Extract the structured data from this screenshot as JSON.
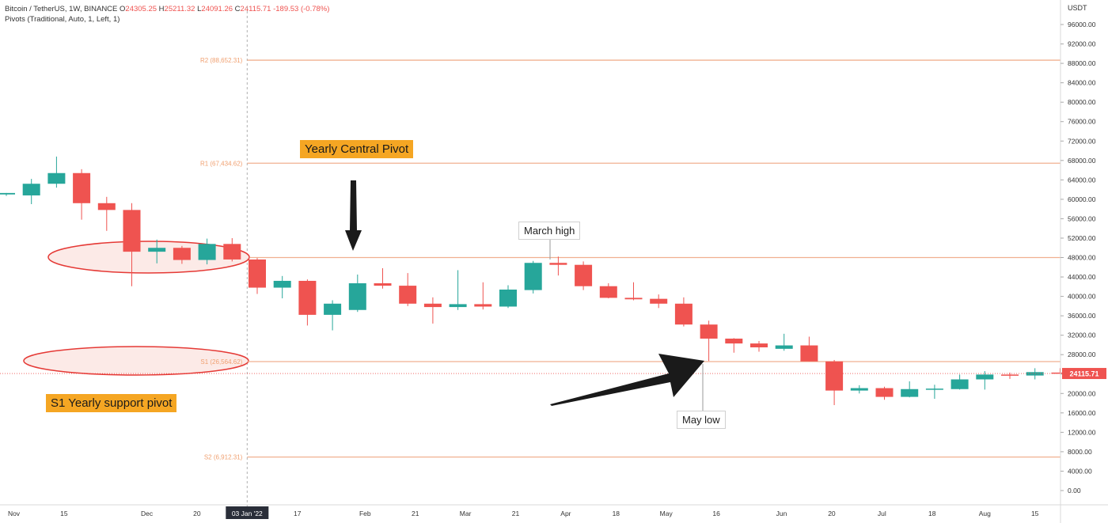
{
  "header": {
    "symbol_line": "Bitcoin / TetherUS, 1W, BINANCE",
    "open_label": "O",
    "open": "24305.25",
    "high_label": "H",
    "high": "25211.32",
    "low_label": "L",
    "low": "24091.26",
    "close_label": "C",
    "close": "24115.71",
    "change": "-189.53 (-0.78%)",
    "indicator_line": "Pivots (Traditional, Auto, 1, Left, 1)"
  },
  "annotations": {
    "central_pivot": "Yearly Central Pivot",
    "s1_support": "S1 Yearly support pivot",
    "march_high": "March high",
    "may_low": "May low"
  },
  "colors": {
    "up": "#26a69a",
    "down": "#ef5350",
    "pivot_line": "#f0b090",
    "pivot_label": "#f0a070",
    "callout": "#f5a623",
    "ellipse_fill": "#fbe3df",
    "ellipse_stroke": "#e53935"
  },
  "chart_data": {
    "type": "candlestick",
    "y_axis_unit": "USDT",
    "ylim": [
      -2000,
      99000
    ],
    "y_ticks": [
      "96000.00",
      "92000.00",
      "88000.00",
      "84000.00",
      "80000.00",
      "76000.00",
      "72000.00",
      "68000.00",
      "64000.00",
      "60000.00",
      "56000.00",
      "52000.00",
      "48000.00",
      "44000.00",
      "40000.00",
      "36000.00",
      "32000.00",
      "28000.00",
      "24000.00",
      "20000.00",
      "16000.00",
      "12000.00",
      "8000.00",
      "4000.00",
      "0.00"
    ],
    "x_ticks": [
      {
        "label": "Nov",
        "index": -0.7
      },
      {
        "label": "15",
        "index": 1.3
      },
      {
        "label": "Dec",
        "index": 4.6
      },
      {
        "label": "20",
        "index": 6.6
      },
      {
        "label": "03 Jan '22",
        "index": 8.6,
        "highlight": true
      },
      {
        "label": "17",
        "index": 10.6
      },
      {
        "label": "Feb",
        "index": 13.3
      },
      {
        "label": "21",
        "index": 15.3
      },
      {
        "label": "Mar",
        "index": 17.3
      },
      {
        "label": "21",
        "index": 19.3
      },
      {
        "label": "Apr",
        "index": 21.3
      },
      {
        "label": "18",
        "index": 23.3
      },
      {
        "label": "May",
        "index": 25.3
      },
      {
        "label": "16",
        "index": 27.3
      },
      {
        "label": "Jun",
        "index": 29.9
      },
      {
        "label": "20",
        "index": 31.9
      },
      {
        "label": "Jul",
        "index": 33.9
      },
      {
        "label": "18",
        "index": 35.9
      },
      {
        "label": "Aug",
        "index": 38.0
      },
      {
        "label": "15",
        "index": 40.0
      }
    ],
    "first_candle_index": -1,
    "current_price": "24115.71",
    "current_price_value": 24115.71,
    "candles": [
      {
        "o": 61000,
        "h": 61300,
        "l": 60700,
        "c": 61300
      },
      {
        "o": 60800,
        "h": 64200,
        "l": 59000,
        "c": 63200
      },
      {
        "o": 63200,
        "h": 68800,
        "l": 62400,
        "c": 65400
      },
      {
        "o": 65400,
        "h": 66200,
        "l": 55800,
        "c": 59200
      },
      {
        "o": 59200,
        "h": 60500,
        "l": 53500,
        "c": 57800
      },
      {
        "o": 57800,
        "h": 59200,
        "l": 42100,
        "c": 49200
      },
      {
        "o": 49200,
        "h": 51700,
        "l": 46800,
        "c": 50000
      },
      {
        "o": 50000,
        "h": 50400,
        "l": 46700,
        "c": 47500
      },
      {
        "o": 47500,
        "h": 51900,
        "l": 46600,
        "c": 50800
      },
      {
        "o": 50800,
        "h": 52000,
        "l": 47200,
        "c": 47600
      },
      {
        "o": 47600,
        "h": 47900,
        "l": 40500,
        "c": 41800
      },
      {
        "o": 41800,
        "h": 44200,
        "l": 39600,
        "c": 43200
      },
      {
        "o": 43200,
        "h": 43500,
        "l": 34000,
        "c": 36200
      },
      {
        "o": 36200,
        "h": 39200,
        "l": 33000,
        "c": 38500
      },
      {
        "o": 37200,
        "h": 44500,
        "l": 36800,
        "c": 42700
      },
      {
        "o": 42700,
        "h": 45800,
        "l": 41600,
        "c": 42200
      },
      {
        "o": 42200,
        "h": 44800,
        "l": 38000,
        "c": 38500
      },
      {
        "o": 38500,
        "h": 39800,
        "l": 34400,
        "c": 37800
      },
      {
        "o": 37800,
        "h": 45400,
        "l": 37200,
        "c": 38400
      },
      {
        "o": 38400,
        "h": 42900,
        "l": 37300,
        "c": 37900
      },
      {
        "o": 37900,
        "h": 42300,
        "l": 37600,
        "c": 41400
      },
      {
        "o": 41300,
        "h": 47300,
        "l": 40600,
        "c": 46900
      },
      {
        "o": 46900,
        "h": 48200,
        "l": 44300,
        "c": 46500
      },
      {
        "o": 46500,
        "h": 47200,
        "l": 41300,
        "c": 42100
      },
      {
        "o": 42100,
        "h": 42700,
        "l": 39600,
        "c": 39700
      },
      {
        "o": 39700,
        "h": 42900,
        "l": 39200,
        "c": 39400
      },
      {
        "o": 39500,
        "h": 40400,
        "l": 37600,
        "c": 38500
      },
      {
        "o": 38500,
        "h": 39800,
        "l": 33800,
        "c": 34200
      },
      {
        "o": 34200,
        "h": 35000,
        "l": 26700,
        "c": 31300
      },
      {
        "o": 31300,
        "h": 31400,
        "l": 28400,
        "c": 30300
      },
      {
        "o": 30300,
        "h": 30800,
        "l": 28600,
        "c": 29500
      },
      {
        "o": 29200,
        "h": 32300,
        "l": 28800,
        "c": 29900
      },
      {
        "o": 29900,
        "h": 31700,
        "l": 26600,
        "c": 26600
      },
      {
        "o": 26600,
        "h": 26900,
        "l": 17600,
        "c": 20600
      },
      {
        "o": 20600,
        "h": 21700,
        "l": 20000,
        "c": 21100
      },
      {
        "o": 21100,
        "h": 21400,
        "l": 18700,
        "c": 19300
      },
      {
        "o": 19300,
        "h": 22500,
        "l": 19200,
        "c": 20900
      },
      {
        "o": 20900,
        "h": 21800,
        "l": 18900,
        "c": 21000
      },
      {
        "o": 20900,
        "h": 23900,
        "l": 20800,
        "c": 22900
      },
      {
        "o": 22900,
        "h": 24600,
        "l": 20800,
        "c": 23900
      },
      {
        "o": 23900,
        "h": 24300,
        "l": 23000,
        "c": 23700
      },
      {
        "o": 23700,
        "h": 25200,
        "l": 22900,
        "c": 24400
      },
      {
        "o": 24305.25,
        "h": 25211.32,
        "l": 24091.26,
        "c": 24115.71
      }
    ],
    "pivot_levels": [
      {
        "name": "R2",
        "label": "R2 (88,652.31)",
        "value": 88652.31,
        "show_label": true
      },
      {
        "name": "R1",
        "label": "R1 (67,434.62)",
        "value": 67434.62,
        "show_label": true
      },
      {
        "name": "P",
        "label": "",
        "value": 48000,
        "show_label": false
      },
      {
        "name": "S1",
        "label": "S1 (26,564.62)",
        "value": 26564.62,
        "show_label": true
      },
      {
        "name": "S2",
        "label": "S2 (6,912.31)",
        "value": 6912.31,
        "show_label": true
      }
    ]
  }
}
